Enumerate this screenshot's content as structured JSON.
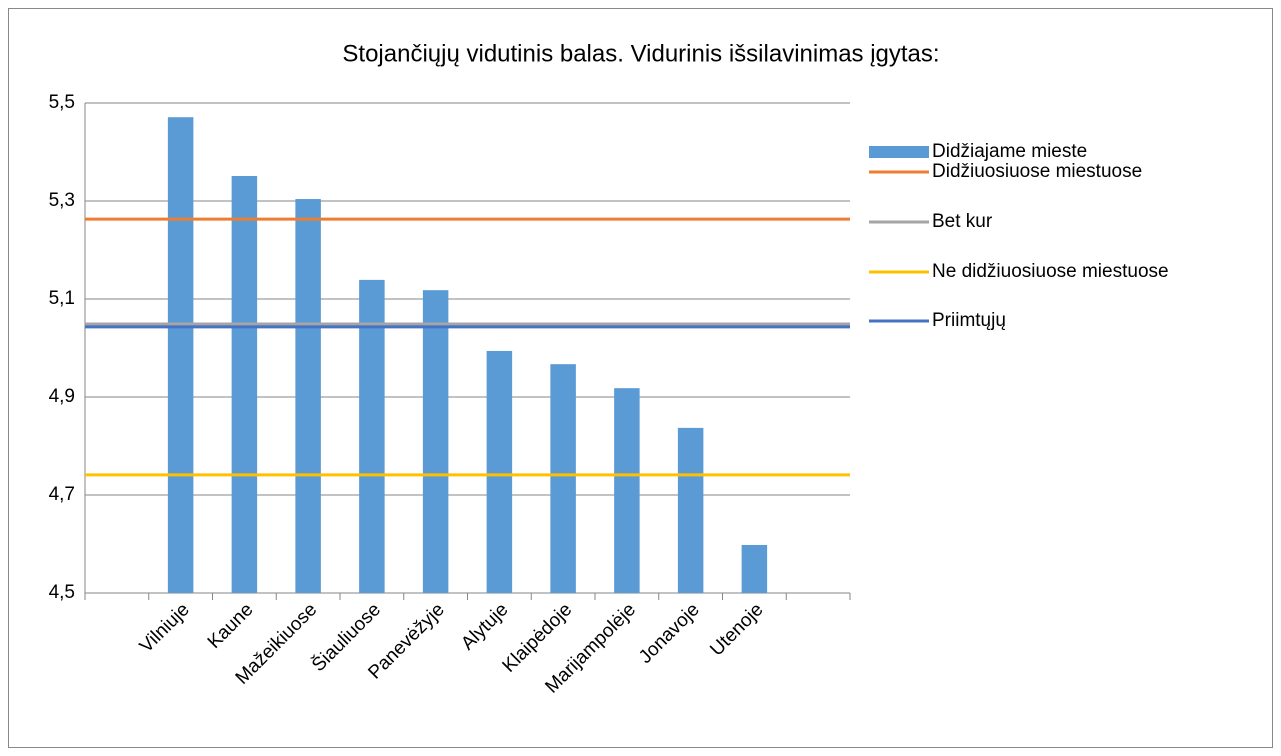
{
  "chart_data": {
    "type": "bar",
    "title": "Stojančiųjų vidutinis balas. Vidurinis išsilavinimas įgytas:",
    "categories": [
      null,
      "Vilniuje",
      "Kaune",
      "Mažeikiuose",
      "Šiauliuose",
      "Panevėžyje",
      "Alytuje",
      "Klaipėdoje",
      "Marijampolėje",
      "Jonavoje",
      "Utenoje",
      null
    ],
    "series": [
      {
        "name": "Didžiajame mieste",
        "color": "#5b9bd5",
        "values": [
          null,
          5.471,
          5.351,
          5.304,
          5.139,
          5.118,
          4.994,
          4.967,
          4.918,
          4.837,
          4.598,
          null
        ]
      }
    ],
    "reference_lines": [
      {
        "name": "Didžiuosiuose miestuose",
        "color": "#ed7d31",
        "value": 5.263
      },
      {
        "name": "Bet kur",
        "color": "#a5a5a5",
        "value": 5.049
      },
      {
        "name": "Ne didžiuosiuose miestuose",
        "color": "#ffc000",
        "value": 4.741
      },
      {
        "name": "Priimtųjų",
        "color": "#4472c4",
        "value": 5.043
      }
    ],
    "ylim": [
      4.5,
      5.5
    ],
    "yticks": [
      {
        "value": 4.5,
        "label": "4,5"
      },
      {
        "value": 4.7,
        "label": "4,7"
      },
      {
        "value": 4.9,
        "label": "4,9"
      },
      {
        "value": 5.1,
        "label": "5,1"
      },
      {
        "value": 5.3,
        "label": "5,3"
      },
      {
        "value": 5.5,
        "label": "5,5"
      }
    ],
    "grid": true,
    "legend": "right"
  }
}
